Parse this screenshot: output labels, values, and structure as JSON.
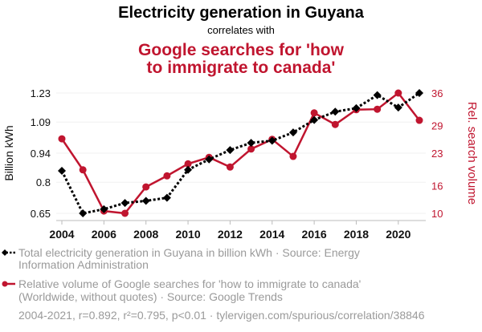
{
  "chart_data": {
    "type": "line",
    "title": "Electricity generation in Guyana",
    "subtitle": "correlates with",
    "title2_lines": [
      "Google searches for 'how",
      "to immigrate to canada'"
    ],
    "x": [
      2004,
      2005,
      2006,
      2007,
      2008,
      2009,
      2010,
      2011,
      2012,
      2013,
      2014,
      2015,
      2016,
      2017,
      2018,
      2019,
      2020,
      2021
    ],
    "x_ticks": [
      "2004",
      "2006",
      "2008",
      "2010",
      "2012",
      "2014",
      "2016",
      "2018",
      "2020"
    ],
    "ylabel_left": "Billion kWh",
    "ylabel_right": "Rel. search volume",
    "ylim_left": [
      0.65,
      1.23
    ],
    "ylim_right": [
      10,
      36
    ],
    "y_ticks_left": [
      "1.23",
      "1.09",
      "0.94",
      "0.8",
      "0.65"
    ],
    "y_ticks_right": [
      "36",
      "29",
      "23",
      "16",
      "10"
    ],
    "grid": true,
    "series": [
      {
        "name": "Total electricity generation in Guyana in billion kWh · Source: Energy Information Administration",
        "legend_lines": [
          "Total electricity generation in Guyana in billion kWh · Source: Energy",
          "Information Administration"
        ],
        "axis": "left",
        "color": "#000000",
        "style": "dotted",
        "marker": "diamond",
        "values": [
          0.855,
          0.65,
          0.67,
          0.7,
          0.71,
          0.725,
          0.86,
          0.91,
          0.955,
          0.99,
          1.0,
          1.04,
          1.1,
          1.14,
          1.157,
          1.22,
          1.16,
          1.23
        ]
      },
      {
        "name": "Relative volume of Google searches for 'how to immigrate to canada' (Worldwide, without quotes) · Source: Google Trends",
        "legend_lines": [
          "Relative volume of Google searches for 'how to immigrate to canada'",
          "(Worldwide, without quotes) · Source: Google Trends"
        ],
        "axis": "right",
        "color": "#c0152f",
        "style": "solid",
        "marker": "circle",
        "values": [
          26.1,
          19.4,
          10.5,
          10.0,
          15.7,
          18.1,
          20.7,
          22.1,
          20.0,
          23.9,
          26.0,
          22.3,
          31.7,
          29.2,
          32.4,
          32.5,
          36.0,
          30.1
        ]
      }
    ],
    "footer": "2004-2021, r=0.892, r²=0.795, p<0.01 · tylervigen.com/spurious/correlation/38846"
  }
}
